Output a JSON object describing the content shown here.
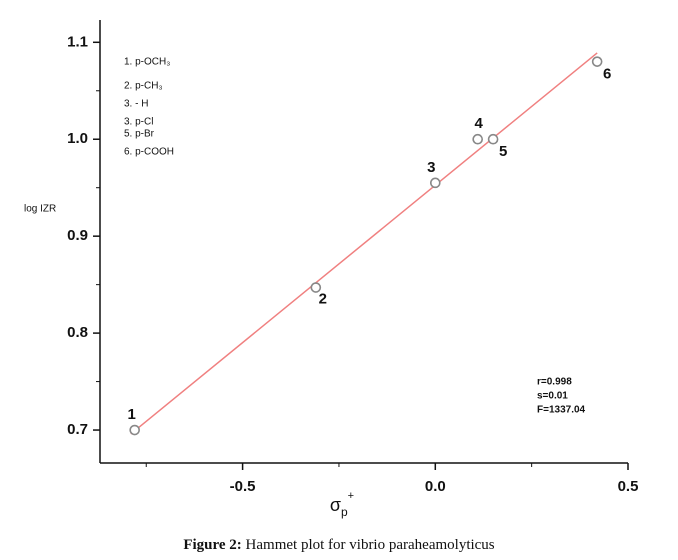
{
  "chart_data": {
    "type": "scatter",
    "y_label": "log IZR",
    "x_label": {
      "symbol": "σ",
      "sub": "p",
      "sup": "+"
    },
    "caption": {
      "label": "Figure 2:",
      "text": "Hammet plot for vibrio paraheamolyticus"
    },
    "xlim": [
      -0.87,
      0.5
    ],
    "ylim": [
      0.666,
      1.123
    ],
    "xticks": [
      -0.5,
      {
        "value": 0,
        "label": "0.0"
      },
      0.5
    ],
    "yticks": [
      1.1,
      {
        "value": 1,
        "label": "1.0"
      },
      0.9,
      0.8,
      0.7
    ],
    "xminor": [
      -0.75,
      -0.25,
      0.25
    ],
    "yminor": [
      0.75,
      0.85,
      0.95,
      1.05
    ],
    "series": [
      {
        "x": [
          -0.78,
          -0.31,
          0.0,
          0.11,
          0.15,
          0.42
        ],
        "values": [
          0.7,
          0.847,
          0.955,
          1.0,
          1.0,
          1.08
        ],
        "color": "#888888"
      }
    ],
    "point_labels": [
      "1",
      "2",
      "3",
      "4",
      "5",
      "6"
    ],
    "fit_line": {
      "x": [
        -0.79,
        0.42
      ],
      "values": [
        0.696,
        1.089
      ],
      "color": "#f08080"
    },
    "substituents": [
      "1. p-OCH₃",
      "2. p-CH₃",
      "3. - H",
      "3. p-Cl",
      "5. p-Br",
      "6. p-COOH"
    ],
    "stats": [
      "r=0.998",
      "s=0.01",
      "F=1337.04"
    ]
  }
}
